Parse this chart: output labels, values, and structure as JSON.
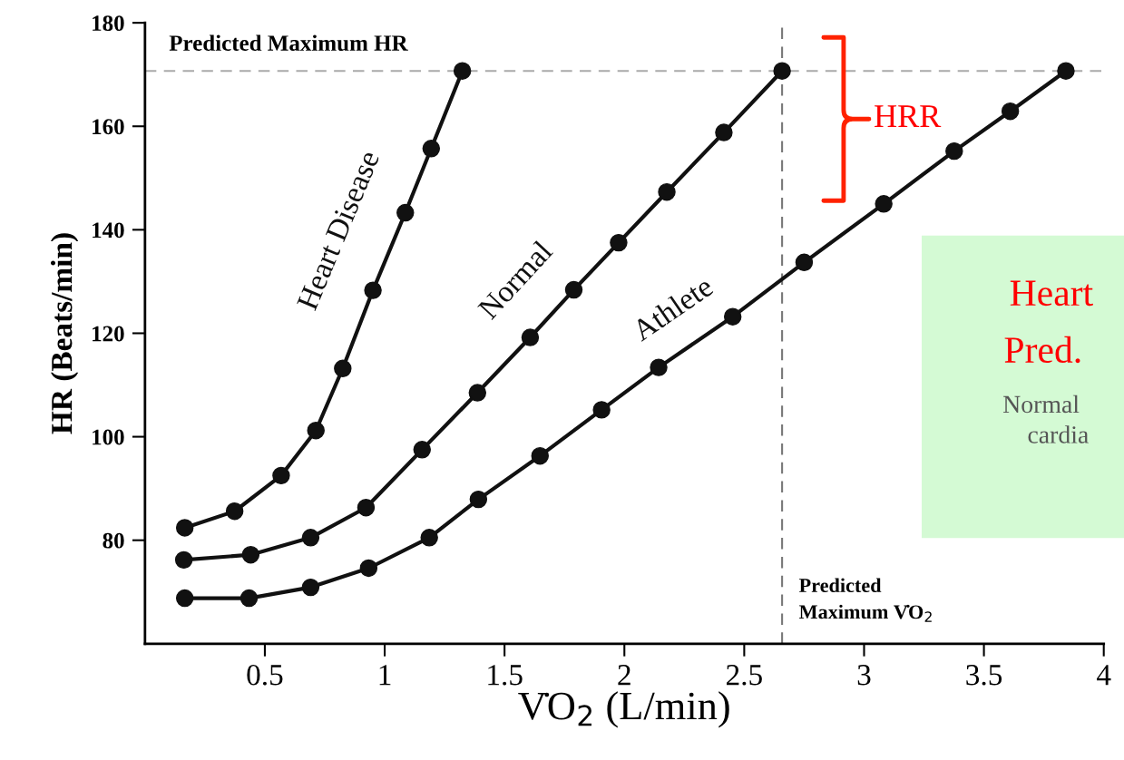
{
  "chart_data": {
    "type": "line",
    "xlabel": "V̇O$_{2}$ (L/min)",
    "ylabel": "HR (Beats/min)",
    "xlim": [
      0,
      4
    ],
    "xticks": [
      0.5,
      1,
      1.5,
      2,
      2.5,
      3,
      3.5,
      4
    ],
    "ylim": [
      60,
      180
    ],
    "yticks": [
      80,
      100,
      120,
      140,
      160,
      180
    ],
    "series": [
      {
        "name": "Heart Disease",
        "color": "#111111",
        "x": [
          0.166,
          0.374,
          0.568,
          0.713,
          0.825,
          0.951,
          1.086,
          1.194,
          1.324
        ],
        "values": [
          82.4,
          85.6,
          92.5,
          101.2,
          113.2,
          128.3,
          143.3,
          155.7,
          170.7
        ]
      },
      {
        "name": "Normal",
        "color": "#111111",
        "x": [
          0.162,
          0.441,
          0.691,
          0.922,
          1.156,
          1.387,
          1.607,
          1.789,
          1.976,
          2.177,
          2.415,
          2.658
        ],
        "values": [
          76.2,
          77.2,
          80.5,
          86.3,
          97.5,
          108.5,
          119.2,
          128.4,
          137.5,
          147.3,
          158.8,
          170.7
        ]
      },
      {
        "name": "Athlete",
        "color": "#111111",
        "x": [
          0.166,
          0.434,
          0.691,
          0.933,
          1.186,
          1.391,
          1.648,
          1.905,
          2.143,
          2.452,
          2.75,
          3.082,
          3.376,
          3.61,
          3.842
        ],
        "values": [
          68.8,
          68.8,
          70.9,
          74.6,
          80.5,
          87.9,
          96.3,
          105.2,
          113.4,
          123.2,
          133.7,
          145.0,
          155.2,
          162.9,
          170.7
        ]
      }
    ],
    "marker": "circle",
    "line_style": "solid",
    "grid": false,
    "ref_lines": [
      {
        "axis": "y",
        "value": 170.7,
        "label": "Predicted Maximum HR",
        "color": "#aaaaaa",
        "line_style": "dashed"
      },
      {
        "axis": "x",
        "value": 2.658,
        "label": "Predicted\nMaximum V̇O$_{2}$",
        "color": "#777777",
        "line_style": "dashed"
      }
    ],
    "annotations": [
      "HRR",
      "Heart",
      "Pred.",
      "Normal",
      "cardia"
    ]
  }
}
